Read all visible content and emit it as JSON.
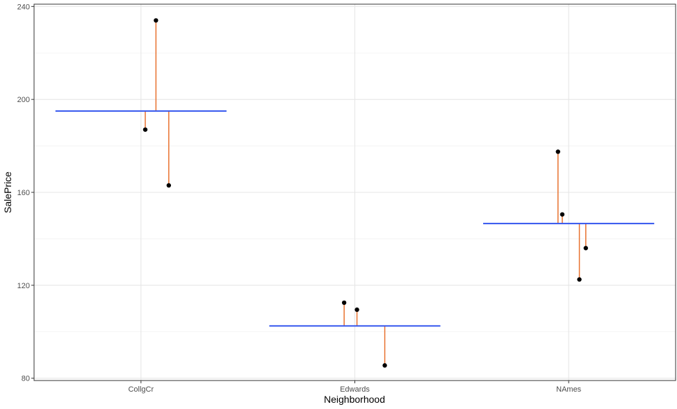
{
  "chart_data": {
    "type": "scatter",
    "xlabel": "Neighborhood",
    "ylabel": "SalePrice",
    "categories": [
      "CollgCr",
      "Edwards",
      "NAmes"
    ],
    "ylim": [
      79,
      241
    ],
    "yticks": [
      80,
      120,
      160,
      200,
      240
    ],
    "grid": true,
    "group_means": [
      {
        "category": "CollgCr",
        "value": 195
      },
      {
        "category": "Edwards",
        "value": 102.5
      },
      {
        "category": "NAmes",
        "value": 146.6
      }
    ],
    "points": [
      {
        "category": "CollgCr",
        "offset": 0.02,
        "value": 187
      },
      {
        "category": "CollgCr",
        "offset": 0.07,
        "value": 234
      },
      {
        "category": "CollgCr",
        "offset": 0.13,
        "value": 163
      },
      {
        "category": "Edwards",
        "offset": -0.05,
        "value": 112.5
      },
      {
        "category": "Edwards",
        "offset": 0.01,
        "value": 109.5
      },
      {
        "category": "Edwards",
        "offset": 0.14,
        "value": 85.5
      },
      {
        "category": "NAmes",
        "offset": -0.05,
        "value": 177.5
      },
      {
        "category": "NAmes",
        "offset": -0.03,
        "value": 150.5
      },
      {
        "category": "NAmes",
        "offset": 0.05,
        "value": 122.5
      },
      {
        "category": "NAmes",
        "offset": 0.08,
        "value": 136
      }
    ],
    "colors": {
      "mean_line": "#3355ee",
      "residual": "#e8712e",
      "point": "#000000",
      "grid_major": "#e6e6e6",
      "grid_minor": "#f2f2f2",
      "panel_border": "#333333",
      "tick_label": "#4d4d4d"
    }
  }
}
